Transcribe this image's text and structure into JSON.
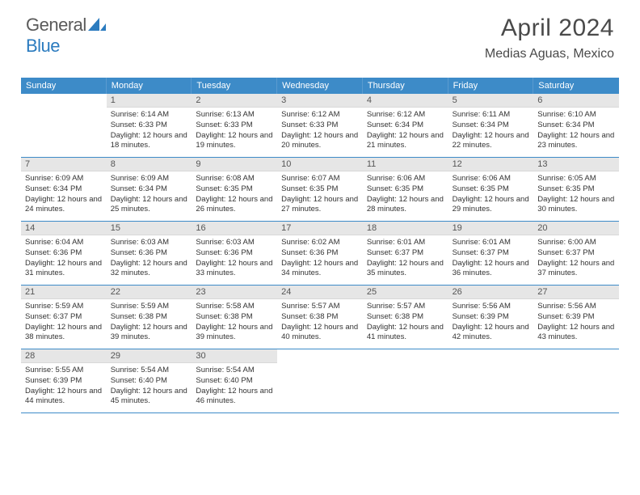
{
  "logo": {
    "text_gray": "General",
    "text_blue": "Blue"
  },
  "title": "April 2024",
  "location": "Medias Aguas, Mexico",
  "colors": {
    "header_bg": "#3d8bc8",
    "header_text": "#ffffff",
    "date_bg": "#e6e6e6",
    "rule": "#3d8bc8",
    "body_text": "#333333",
    "logo_gray": "#5a5a5a",
    "logo_blue": "#2b7bbf"
  },
  "day_names": [
    "Sunday",
    "Monday",
    "Tuesday",
    "Wednesday",
    "Thursday",
    "Friday",
    "Saturday"
  ],
  "weeks": [
    [
      {
        "date": "",
        "sunrise": "",
        "sunset": "",
        "daylight": ""
      },
      {
        "date": "1",
        "sunrise": "Sunrise: 6:14 AM",
        "sunset": "Sunset: 6:33 PM",
        "daylight": "Daylight: 12 hours and 18 minutes."
      },
      {
        "date": "2",
        "sunrise": "Sunrise: 6:13 AM",
        "sunset": "Sunset: 6:33 PM",
        "daylight": "Daylight: 12 hours and 19 minutes."
      },
      {
        "date": "3",
        "sunrise": "Sunrise: 6:12 AM",
        "sunset": "Sunset: 6:33 PM",
        "daylight": "Daylight: 12 hours and 20 minutes."
      },
      {
        "date": "4",
        "sunrise": "Sunrise: 6:12 AM",
        "sunset": "Sunset: 6:34 PM",
        "daylight": "Daylight: 12 hours and 21 minutes."
      },
      {
        "date": "5",
        "sunrise": "Sunrise: 6:11 AM",
        "sunset": "Sunset: 6:34 PM",
        "daylight": "Daylight: 12 hours and 22 minutes."
      },
      {
        "date": "6",
        "sunrise": "Sunrise: 6:10 AM",
        "sunset": "Sunset: 6:34 PM",
        "daylight": "Daylight: 12 hours and 23 minutes."
      }
    ],
    [
      {
        "date": "7",
        "sunrise": "Sunrise: 6:09 AM",
        "sunset": "Sunset: 6:34 PM",
        "daylight": "Daylight: 12 hours and 24 minutes."
      },
      {
        "date": "8",
        "sunrise": "Sunrise: 6:09 AM",
        "sunset": "Sunset: 6:34 PM",
        "daylight": "Daylight: 12 hours and 25 minutes."
      },
      {
        "date": "9",
        "sunrise": "Sunrise: 6:08 AM",
        "sunset": "Sunset: 6:35 PM",
        "daylight": "Daylight: 12 hours and 26 minutes."
      },
      {
        "date": "10",
        "sunrise": "Sunrise: 6:07 AM",
        "sunset": "Sunset: 6:35 PM",
        "daylight": "Daylight: 12 hours and 27 minutes."
      },
      {
        "date": "11",
        "sunrise": "Sunrise: 6:06 AM",
        "sunset": "Sunset: 6:35 PM",
        "daylight": "Daylight: 12 hours and 28 minutes."
      },
      {
        "date": "12",
        "sunrise": "Sunrise: 6:06 AM",
        "sunset": "Sunset: 6:35 PM",
        "daylight": "Daylight: 12 hours and 29 minutes."
      },
      {
        "date": "13",
        "sunrise": "Sunrise: 6:05 AM",
        "sunset": "Sunset: 6:35 PM",
        "daylight": "Daylight: 12 hours and 30 minutes."
      }
    ],
    [
      {
        "date": "14",
        "sunrise": "Sunrise: 6:04 AM",
        "sunset": "Sunset: 6:36 PM",
        "daylight": "Daylight: 12 hours and 31 minutes."
      },
      {
        "date": "15",
        "sunrise": "Sunrise: 6:03 AM",
        "sunset": "Sunset: 6:36 PM",
        "daylight": "Daylight: 12 hours and 32 minutes."
      },
      {
        "date": "16",
        "sunrise": "Sunrise: 6:03 AM",
        "sunset": "Sunset: 6:36 PM",
        "daylight": "Daylight: 12 hours and 33 minutes."
      },
      {
        "date": "17",
        "sunrise": "Sunrise: 6:02 AM",
        "sunset": "Sunset: 6:36 PM",
        "daylight": "Daylight: 12 hours and 34 minutes."
      },
      {
        "date": "18",
        "sunrise": "Sunrise: 6:01 AM",
        "sunset": "Sunset: 6:37 PM",
        "daylight": "Daylight: 12 hours and 35 minutes."
      },
      {
        "date": "19",
        "sunrise": "Sunrise: 6:01 AM",
        "sunset": "Sunset: 6:37 PM",
        "daylight": "Daylight: 12 hours and 36 minutes."
      },
      {
        "date": "20",
        "sunrise": "Sunrise: 6:00 AM",
        "sunset": "Sunset: 6:37 PM",
        "daylight": "Daylight: 12 hours and 37 minutes."
      }
    ],
    [
      {
        "date": "21",
        "sunrise": "Sunrise: 5:59 AM",
        "sunset": "Sunset: 6:37 PM",
        "daylight": "Daylight: 12 hours and 38 minutes."
      },
      {
        "date": "22",
        "sunrise": "Sunrise: 5:59 AM",
        "sunset": "Sunset: 6:38 PM",
        "daylight": "Daylight: 12 hours and 39 minutes."
      },
      {
        "date": "23",
        "sunrise": "Sunrise: 5:58 AM",
        "sunset": "Sunset: 6:38 PM",
        "daylight": "Daylight: 12 hours and 39 minutes."
      },
      {
        "date": "24",
        "sunrise": "Sunrise: 5:57 AM",
        "sunset": "Sunset: 6:38 PM",
        "daylight": "Daylight: 12 hours and 40 minutes."
      },
      {
        "date": "25",
        "sunrise": "Sunrise: 5:57 AM",
        "sunset": "Sunset: 6:38 PM",
        "daylight": "Daylight: 12 hours and 41 minutes."
      },
      {
        "date": "26",
        "sunrise": "Sunrise: 5:56 AM",
        "sunset": "Sunset: 6:39 PM",
        "daylight": "Daylight: 12 hours and 42 minutes."
      },
      {
        "date": "27",
        "sunrise": "Sunrise: 5:56 AM",
        "sunset": "Sunset: 6:39 PM",
        "daylight": "Daylight: 12 hours and 43 minutes."
      }
    ],
    [
      {
        "date": "28",
        "sunrise": "Sunrise: 5:55 AM",
        "sunset": "Sunset: 6:39 PM",
        "daylight": "Daylight: 12 hours and 44 minutes."
      },
      {
        "date": "29",
        "sunrise": "Sunrise: 5:54 AM",
        "sunset": "Sunset: 6:40 PM",
        "daylight": "Daylight: 12 hours and 45 minutes."
      },
      {
        "date": "30",
        "sunrise": "Sunrise: 5:54 AM",
        "sunset": "Sunset: 6:40 PM",
        "daylight": "Daylight: 12 hours and 46 minutes."
      },
      {
        "date": "",
        "sunrise": "",
        "sunset": "",
        "daylight": ""
      },
      {
        "date": "",
        "sunrise": "",
        "sunset": "",
        "daylight": ""
      },
      {
        "date": "",
        "sunrise": "",
        "sunset": "",
        "daylight": ""
      },
      {
        "date": "",
        "sunrise": "",
        "sunset": "",
        "daylight": ""
      }
    ]
  ]
}
